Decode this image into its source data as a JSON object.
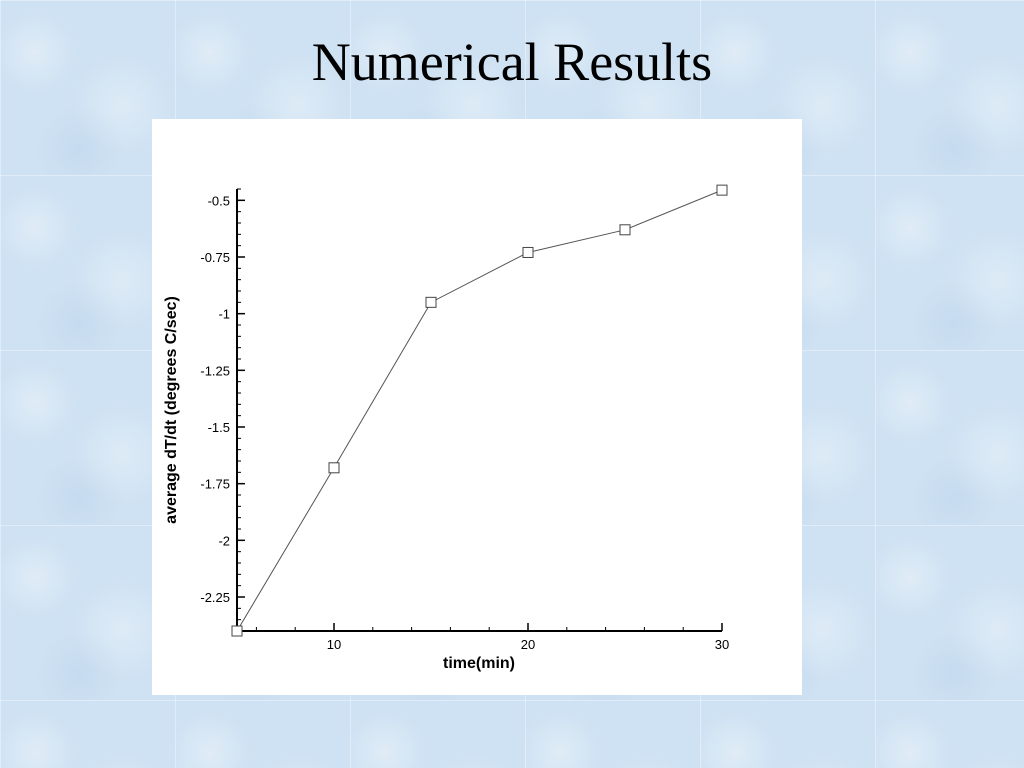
{
  "slide": {
    "title": "Numerical Results"
  },
  "chart_data": {
    "type": "line",
    "title": "",
    "xlabel": "time(min)",
    "ylabel": "average dT/dt (degrees C/sec)",
    "xlim": [
      5,
      30
    ],
    "ylim": [
      -2.4,
      -0.45
    ],
    "x_ticks": [
      10,
      20,
      30
    ],
    "x_tick_labels": [
      "10",
      "20",
      "30"
    ],
    "x_minor_step": 2,
    "y_ticks": [
      -2.25,
      -2,
      -1.75,
      -1.5,
      -1.25,
      -1,
      -0.75,
      -0.5
    ],
    "y_tick_labels": [
      "-2.25",
      "-2",
      "-1.75",
      "-1.5",
      "-1.25",
      "-1",
      "-0.75",
      "-0.5"
    ],
    "y_minor_step": 0.05,
    "grid": false,
    "marker": "open-square",
    "line_color": "#555555",
    "x": [
      5,
      10,
      15,
      20,
      25,
      30
    ],
    "y": [
      -2.4,
      -1.68,
      -0.95,
      -0.73,
      -0.63,
      -0.455
    ]
  }
}
